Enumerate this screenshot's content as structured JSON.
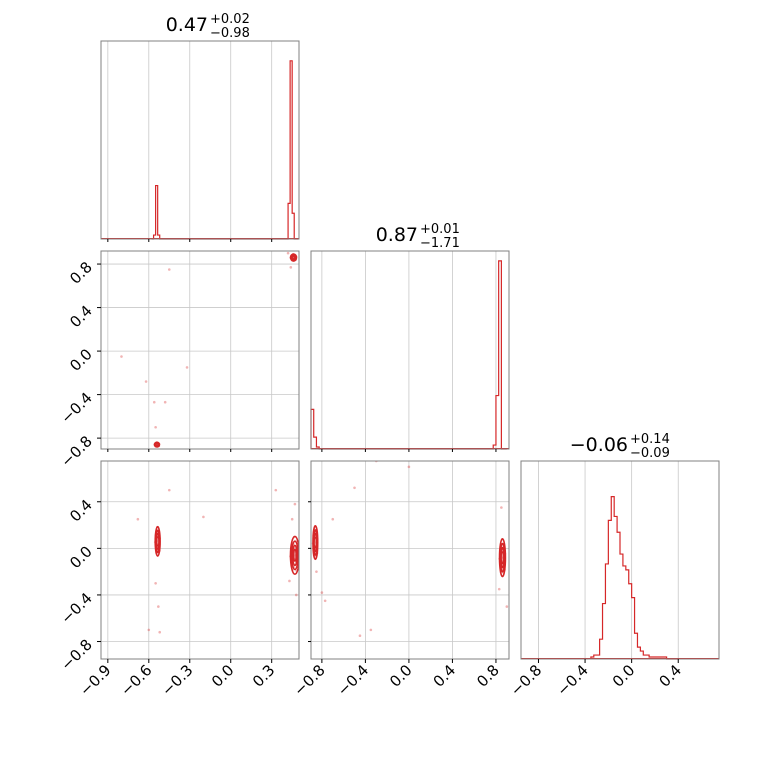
{
  "colors": {
    "series": "#d62728",
    "frame": "#808080",
    "grid": "#c8c8c8"
  },
  "chart_data": {
    "type": "corner",
    "parameters": [
      {
        "title": {
          "median": "0.47",
          "plus": "+0.02",
          "minus": "−0.98"
        },
        "range": [
          -0.95,
          0.5
        ],
        "ticks": [
          -0.9,
          -0.6,
          -0.3,
          0.0,
          0.3
        ],
        "tick_labels": [
          "−0.9",
          "−0.6",
          "−0.3",
          "0.0",
          "0.3"
        ]
      },
      {
        "title": {
          "median": "0.87",
          "plus": "+0.01",
          "minus": "−1.71"
        },
        "range": [
          -0.9,
          0.92
        ],
        "ticks": [
          -0.8,
          -0.4,
          0.0,
          0.4,
          0.8
        ],
        "tick_labels": [
          "−0.8",
          "−0.4",
          "0.0",
          "0.4",
          "0.8"
        ]
      },
      {
        "title": {
          "median": "−0.06",
          "plus": "+0.14",
          "minus": "−0.09"
        },
        "range": [
          -0.95,
          0.75
        ],
        "ticks": [
          -0.8,
          -0.4,
          0.0,
          0.4
        ],
        "tick_labels": [
          "−0.8",
          "−0.4",
          "0.0",
          "0.4"
        ]
      }
    ],
    "histograms": [
      {
        "param": 0,
        "bin_edges": [
          -0.58,
          -0.565,
          -0.55,
          -0.535,
          -0.52,
          -0.505,
          -0.49,
          0.42,
          0.435,
          0.45,
          0.465,
          0.48,
          0.495
        ],
        "density": [
          0,
          0.02,
          0.27,
          0.02,
          0,
          0,
          0,
          0.18,
          0.9,
          0.13,
          0,
          0
        ]
      },
      {
        "param": 1,
        "bin_edges": [
          -0.9,
          -0.875,
          -0.85,
          -0.825,
          -0.8,
          0.75,
          0.775,
          0.8,
          0.825,
          0.85,
          0.875,
          0.9
        ],
        "density": [
          0.2,
          0.06,
          0.01,
          0,
          0,
          0,
          0.02,
          0.27,
          0.95,
          0,
          0
        ]
      },
      {
        "param": 2,
        "bin_edges": [
          -0.35,
          -0.325,
          -0.3,
          -0.275,
          -0.25,
          -0.225,
          -0.2,
          -0.175,
          -0.15,
          -0.125,
          -0.1,
          -0.075,
          -0.05,
          -0.025,
          0.0,
          0.025,
          0.05,
          0.075,
          0.1,
          0.125,
          0.15,
          0.175,
          0.2,
          0.225,
          0.25,
          0.275,
          0.3,
          0.325,
          0.35,
          0.375,
          0.4
        ],
        "density": [
          0.01,
          0.02,
          0.02,
          0.1,
          0.28,
          0.48,
          0.7,
          0.82,
          0.72,
          0.64,
          0.53,
          0.47,
          0.45,
          0.38,
          0.31,
          0.13,
          0.06,
          0.04,
          0.02,
          0.02,
          0.01,
          0.01,
          0.01,
          0.01,
          0.01,
          0.01,
          0.0,
          0.0,
          0.0,
          0.0
        ]
      }
    ],
    "contour_panels": [
      {
        "x_param": 0,
        "y_param": 1,
        "clusters": [
          {
            "cx": 0.46,
            "cy": 0.86,
            "sx": 0.012,
            "sy": 0.018
          },
          {
            "cx": -0.54,
            "cy": -0.86,
            "sx": 0.01,
            "sy": 0.012
          }
        ],
        "scatter": [
          [
            -0.8,
            -0.05
          ],
          [
            -0.62,
            -0.28
          ],
          [
            -0.56,
            -0.47
          ],
          [
            -0.48,
            -0.47
          ],
          [
            -0.55,
            -0.7
          ],
          [
            -0.32,
            -0.15
          ],
          [
            -0.45,
            0.75
          ],
          [
            0.44,
            0.77
          ],
          [
            0.42,
            0.9
          ],
          [
            -0.15,
            0.93
          ]
        ]
      },
      {
        "x_param": 0,
        "y_param": 2,
        "clusters": [
          {
            "cx": -0.535,
            "cy": 0.06,
            "sx": 0.01,
            "sy": 0.07
          },
          {
            "cx": 0.47,
            "cy": -0.06,
            "sx": 0.018,
            "sy": 0.09
          }
        ],
        "scatter": [
          [
            -0.55,
            -0.3
          ],
          [
            -0.53,
            -0.5
          ],
          [
            -0.6,
            -0.7
          ],
          [
            -0.52,
            -0.72
          ],
          [
            -0.68,
            0.25
          ],
          [
            -0.45,
            0.5
          ],
          [
            0.47,
            0.38
          ],
          [
            0.45,
            0.25
          ],
          [
            0.43,
            -0.28
          ],
          [
            0.48,
            -0.4
          ],
          [
            -0.2,
            0.27
          ],
          [
            0.33,
            0.5
          ]
        ]
      },
      {
        "x_param": 1,
        "y_param": 2,
        "clusters": [
          {
            "cx": -0.86,
            "cy": 0.05,
            "sx": 0.012,
            "sy": 0.08
          },
          {
            "cx": 0.86,
            "cy": -0.08,
            "sx": 0.015,
            "sy": 0.09
          }
        ],
        "scatter": [
          [
            -0.85,
            -0.2
          ],
          [
            -0.8,
            -0.38
          ],
          [
            -0.77,
            -0.45
          ],
          [
            -0.7,
            0.25
          ],
          [
            -0.5,
            0.52
          ],
          [
            -0.3,
            0.75
          ],
          [
            -0.45,
            -0.75
          ],
          [
            -0.35,
            -0.7
          ],
          [
            0.85,
            0.35
          ],
          [
            0.83,
            -0.35
          ],
          [
            0.9,
            -0.5
          ],
          [
            0.0,
            0.7
          ]
        ]
      }
    ]
  }
}
